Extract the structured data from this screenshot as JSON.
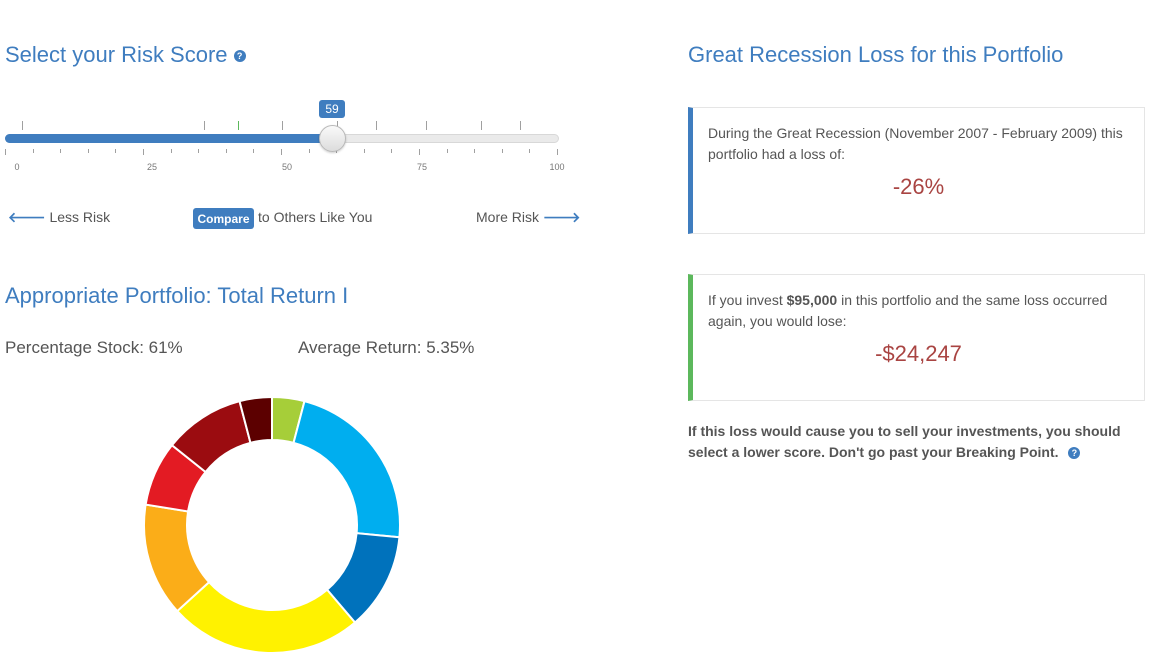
{
  "risk": {
    "title": "Select your Risk Score",
    "help_icon": "question-circle-icon",
    "score": 59,
    "score_label": "59",
    "min": 0,
    "max": 100,
    "tick_labels": [
      "0",
      "25",
      "50",
      "75",
      "100"
    ],
    "less_risk_label": "Less Risk",
    "more_risk_label": "More Risk",
    "compare_button": "Compare",
    "compare_text": "to Others Like You",
    "slider_color": "#3f7dbf"
  },
  "portfolio": {
    "title": "Appropriate Portfolio: Total Return I",
    "percentage_stock": "Percentage Stock: 61%",
    "average_return": "Average Return: 5.35%",
    "donut_segments": [
      {
        "value": 4,
        "color": "#a6ce39"
      },
      {
        "value": 22,
        "color": "#00aeef"
      },
      {
        "value": 12,
        "color": "#0072bc"
      },
      {
        "value": 24,
        "color": "#fff200"
      },
      {
        "value": 14,
        "color": "#fbad18"
      },
      {
        "value": 8,
        "color": "#e31b23"
      },
      {
        "value": 10,
        "color": "#9b0c10"
      },
      {
        "value": 4,
        "color": "#5c0000"
      }
    ]
  },
  "recession": {
    "title": "Great Recession Loss for this Portfolio",
    "box1_text": "During the Great Recession (November 2007 - February 2009) this portfolio had a loss of:",
    "loss_percent": "-26%",
    "box2_prefix": "If you invest ",
    "invest_amount": "$95,000",
    "box2_suffix": " in this portfolio and the same loss occurred again, you would lose:",
    "loss_amount": "-$24,247",
    "warning": "If this loss would cause you to sell your investments, you should select a lower score. Don't go past your Breaking Point."
  }
}
